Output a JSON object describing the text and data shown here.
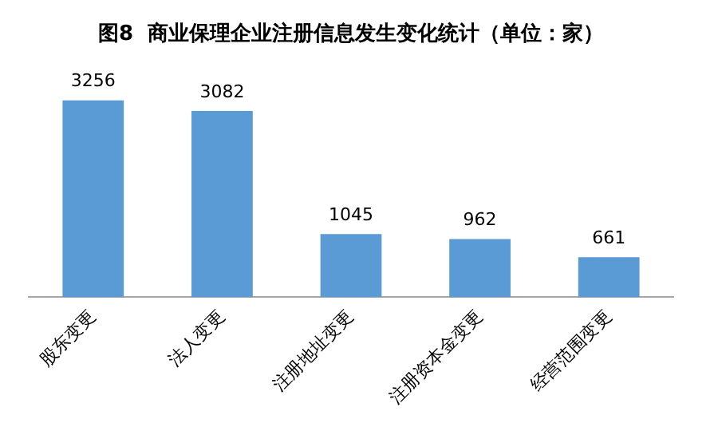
{
  "chart_data": {
    "type": "bar",
    "title": "图8  商业保理企业注册信息发生变化统计（单位：家）",
    "categories": [
      "股东变更",
      "法人变更",
      "注册地址变更",
      "注册资本金变更",
      "经营范围变更"
    ],
    "values": [
      3256,
      3082,
      1045,
      962,
      661
    ],
    "color": "#5b9bd5",
    "data_labels": true,
    "grid": false,
    "legend": false
  }
}
